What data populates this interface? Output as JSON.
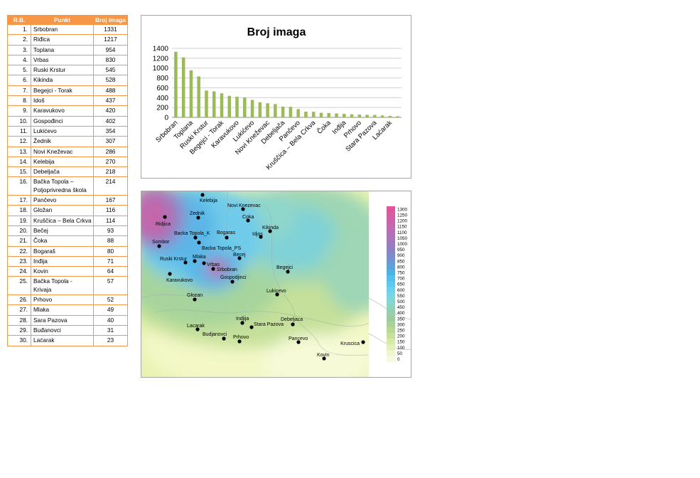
{
  "table": {
    "headers": [
      "R.B.",
      "Punkt",
      "Broj imaga"
    ],
    "rows": [
      {
        "rb": "1.",
        "punkt": "Srbobran",
        "broj": "1331"
      },
      {
        "rb": "2.",
        "punkt": "Riđica",
        "broj": "1217"
      },
      {
        "rb": "3.",
        "punkt": "Toplana",
        "broj": "954"
      },
      {
        "rb": "4.",
        "punkt": "Vrbas",
        "broj": "830"
      },
      {
        "rb": "5.",
        "punkt": "Ruski Krstur",
        "broj": "545"
      },
      {
        "rb": "6.",
        "punkt": "Kikinda",
        "broj": "528"
      },
      {
        "rb": "7.",
        "punkt": "Begejci - Torak",
        "broj": "488"
      },
      {
        "rb": "8.",
        "punkt": "Idoš",
        "broj": "437"
      },
      {
        "rb": "9.",
        "punkt": "Karavukovo",
        "broj": "420"
      },
      {
        "rb": "10.",
        "punkt": "Gospođinci",
        "broj": "402"
      },
      {
        "rb": "11.",
        "punkt": "Lukićevo",
        "broj": "354"
      },
      {
        "rb": "12.",
        "punkt": "Žednik",
        "broj": "307"
      },
      {
        "rb": "13.",
        "punkt": "Novi Kneževac",
        "broj": "286"
      },
      {
        "rb": "14.",
        "punkt": "Kelebija",
        "broj": "270"
      },
      {
        "rb": "15.",
        "punkt": "Debeljača",
        "broj": "218"
      },
      {
        "rb": "16.",
        "punkt": "Bačka Topola – Poljoprivredna škola",
        "broj": "214"
      },
      {
        "rb": "17.",
        "punkt": "Pančevo",
        "broj": "167"
      },
      {
        "rb": "18.",
        "punkt": "Gložan",
        "broj": "116"
      },
      {
        "rb": "19.",
        "punkt": "Kruščica – Bela Crkva",
        "broj": "114"
      },
      {
        "rb": "20.",
        "punkt": "Bečej",
        "broj": "93"
      },
      {
        "rb": "21.",
        "punkt": "Čoka",
        "broj": "88"
      },
      {
        "rb": "22.",
        "punkt": "Bogaraš",
        "broj": "80"
      },
      {
        "rb": "23.",
        "punkt": "Inđija",
        "broj": "71"
      },
      {
        "rb": "24.",
        "punkt": "Kovin",
        "broj": "64"
      },
      {
        "rb": "25.",
        "punkt": "Bačka Topola - Krivaja",
        "broj": "57"
      },
      {
        "rb": "26.",
        "punkt": "Prhovo",
        "broj": "52"
      },
      {
        "rb": "27.",
        "punkt": "Mlaka",
        "broj": "49"
      },
      {
        "rb": "28.",
        "punkt": "Sara Pazova",
        "broj": "40"
      },
      {
        "rb": "29.",
        "punkt": "Buđanovci",
        "broj": "31"
      },
      {
        "rb": "30.",
        "punkt": "Laćarak",
        "broj": "23"
      }
    ]
  },
  "chart_data": {
    "type": "bar",
    "title": "Broj imaga",
    "xlabel": "",
    "ylabel": "",
    "ylim": [
      0,
      1400
    ],
    "yticks": [
      0,
      200,
      400,
      600,
      800,
      1000,
      1200,
      1400
    ],
    "grid": true,
    "legend": "none",
    "bar_color": "#9bbb59",
    "categories": [
      "Srbobran",
      "Riđica",
      "Toplana",
      "Vrbas",
      "Ruski Krstur",
      "Kikinda",
      "Begejci - Torak",
      "Idoš",
      "Karavukovo",
      "Gospođinci",
      "Lukićevo",
      "Žednik",
      "Novi Kneževac",
      "Kelebija",
      "Debeljača",
      "Bačka Topola – Poljoprivredna škola",
      "Pančevo",
      "Gložan",
      "Kruščica – Bela Crkva",
      "Bečej",
      "Čoka",
      "Bogaraš",
      "Inđija",
      "Kovin",
      "Bačka Topola - Krivaja",
      "Prhovo",
      "Mlaka",
      "Sara Pazova",
      "Buđanovci",
      "Laćarak"
    ],
    "visible_tick_labels": [
      "Srbobran",
      "Toplana",
      "Ruski Krstur",
      "Begejci - Torak",
      "Karavukovo",
      "Lukićevo",
      "Novi Kneževac",
      "Debeljača",
      "Pančevo",
      "Kruščica – Bela Crkva",
      "Čoka",
      "Inđija",
      "Prhovo",
      "Stara Pazova",
      "Laćarak"
    ],
    "values": [
      1331,
      1217,
      954,
      830,
      545,
      528,
      488,
      437,
      420,
      402,
      354,
      307,
      286,
      270,
      218,
      214,
      167,
      116,
      114,
      93,
      88,
      80,
      71,
      64,
      57,
      52,
      49,
      40,
      31,
      23
    ]
  },
  "map": {
    "legend_values": [
      "1300",
      "1250",
      "1200",
      "1150",
      "1100",
      "1050",
      "1000",
      "950",
      "900",
      "850",
      "800",
      "750",
      "700",
      "650",
      "600",
      "550",
      "500",
      "450",
      "400",
      "350",
      "300",
      "250",
      "200",
      "150",
      "100",
      "50",
      "0"
    ],
    "legend_colors": [
      "#e0559a",
      "#d85ca2",
      "#ce62aa",
      "#c468b0",
      "#b86eb6",
      "#ab74bc",
      "#9c7ac0",
      "#8e82c6",
      "#7f8ccc",
      "#6c98d2",
      "#5aa4dc",
      "#4cb2e6",
      "#52bfec",
      "#5ec9ee",
      "#6ad2ec",
      "#78d8e2",
      "#84d6d2",
      "#8ed2c0",
      "#96cfae",
      "#9ecca0",
      "#a8d296",
      "#b6da94",
      "#c6e29a",
      "#d6eaa6",
      "#e4f0b8",
      "#eef6cc",
      "#f6fae0"
    ],
    "stations": [
      {
        "name": "Kelebija"
      },
      {
        "name": "Zednik"
      },
      {
        "name": "Novi Knezevac"
      },
      {
        "name": "Coka"
      },
      {
        "name": "Ridjica"
      },
      {
        "name": "Backa Topola_K"
      },
      {
        "name": "Bogaras"
      },
      {
        "name": "Idjos"
      },
      {
        "name": "Kikinda"
      },
      {
        "name": "Backa Topola_PS"
      },
      {
        "name": "Sombor"
      },
      {
        "name": "Becej"
      },
      {
        "name": "Mlaka"
      },
      {
        "name": "Ruski Krstur"
      },
      {
        "name": "Vrbas"
      },
      {
        "name": "Srbobran"
      },
      {
        "name": "Begejci"
      },
      {
        "name": "Karavukovo"
      },
      {
        "name": "Gospodjinci"
      },
      {
        "name": "Lukicevo"
      },
      {
        "name": "Glozan"
      },
      {
        "name": "Indjija"
      },
      {
        "name": "Debeljaca"
      },
      {
        "name": "Stara Pazova"
      },
      {
        "name": "Lacarak"
      },
      {
        "name": "Budjanovci"
      },
      {
        "name": "Prhovo"
      },
      {
        "name": "Pancevo"
      },
      {
        "name": "Kruscica"
      },
      {
        "name": "Kovin"
      }
    ]
  }
}
